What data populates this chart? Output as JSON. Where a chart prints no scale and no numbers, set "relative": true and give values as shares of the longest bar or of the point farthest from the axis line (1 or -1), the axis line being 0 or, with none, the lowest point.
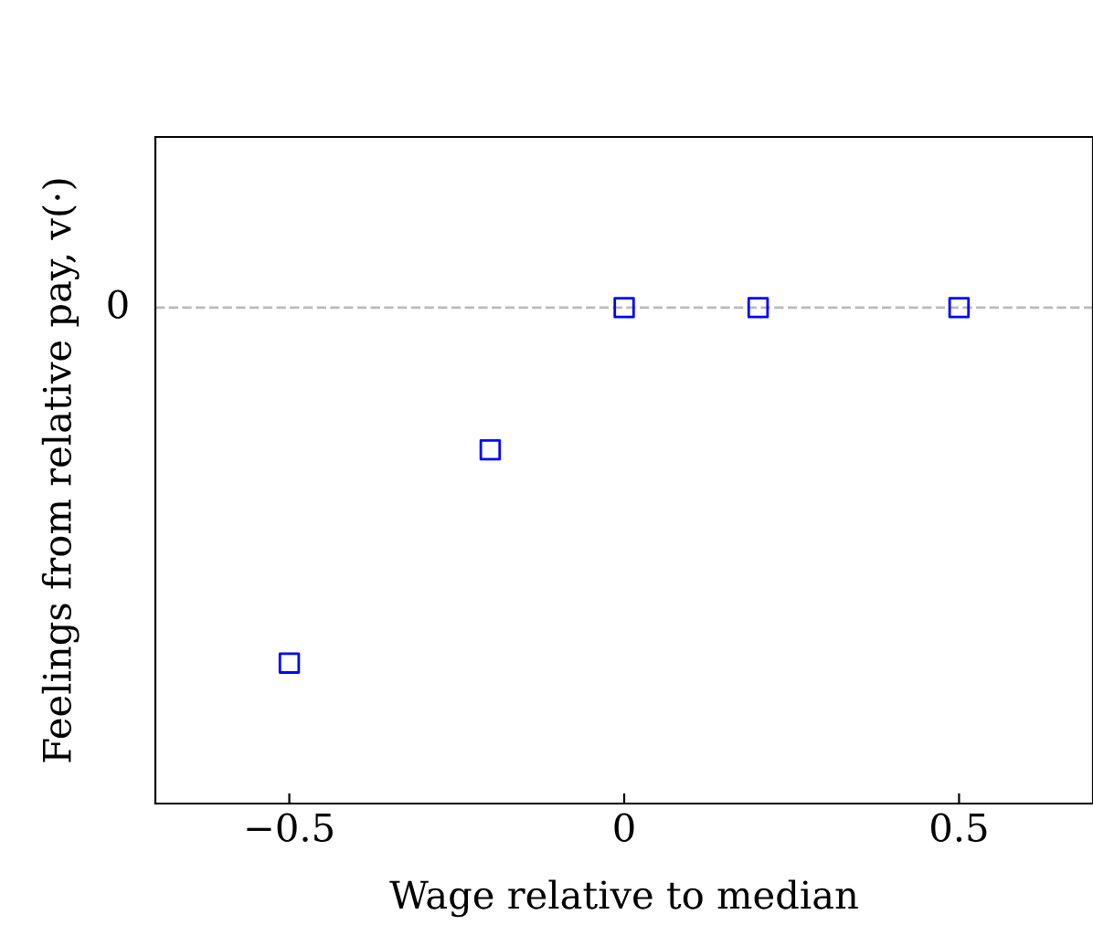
{
  "chart_data": {
    "type": "scatter",
    "xlabel": "Wage relative to median",
    "ylabel": "Feelings from relative pay, v(·)",
    "x": [
      -0.5,
      -0.2,
      0,
      0.2,
      0.5
    ],
    "series": [
      {
        "color": "#0000ff",
        "values": [
          -1,
          -0.4,
          0,
          0,
          0
        ]
      }
    ],
    "relative": true,
    "marker": "square",
    "xlim": [
      -0.7,
      0.7
    ],
    "xticks": [
      {
        "value": -0.5,
        "label": "−0.5"
      },
      0,
      0.5
    ],
    "ref_lines": [
      {
        "axis": "y",
        "value": 0,
        "label": "0",
        "color": "#bbbbbb",
        "line_style": "dashed"
      }
    ],
    "grid": false
  }
}
